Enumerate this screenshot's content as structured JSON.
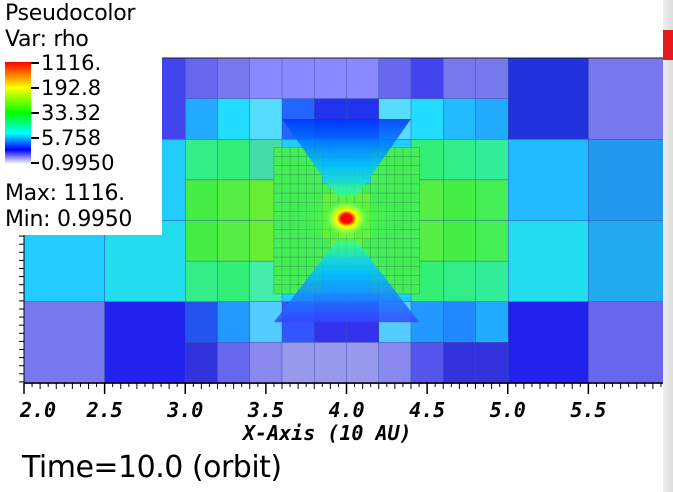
{
  "legend": {
    "title": "Pseudocolor",
    "var": "Var: rho",
    "max_text": "Max:  1116.",
    "min_text": "Min:  0.9950",
    "colorbar_labels": [
      "1116.",
      "192.8",
      "33.32",
      "5.758",
      "0.9950"
    ]
  },
  "time_label": "Time=10.0 (orbit)",
  "colors": {
    "high": "#ff0000",
    "mid_high": "#ffff00",
    "mid": "#00ff00",
    "mid_low": "#00ffff",
    "low": "#0000ff",
    "min": "#ffffff"
  },
  "chart_data": {
    "type": "heatmap",
    "title": "",
    "xlabel": "X-Axis (10 AU)",
    "ylabel": "",
    "xlim": [
      2.0,
      6.0
    ],
    "x_ticks": [
      "2.0",
      "2.5",
      "3.0",
      "3.5",
      "4.0",
      "4.5",
      "5.0",
      "5.5"
    ],
    "variable": "rho",
    "scale": "log",
    "value_range": [
      0.995,
      1116
    ],
    "peak": {
      "x": 4.0,
      "value": 1116
    },
    "grid": "adaptive mesh refinement (AMR)"
  }
}
